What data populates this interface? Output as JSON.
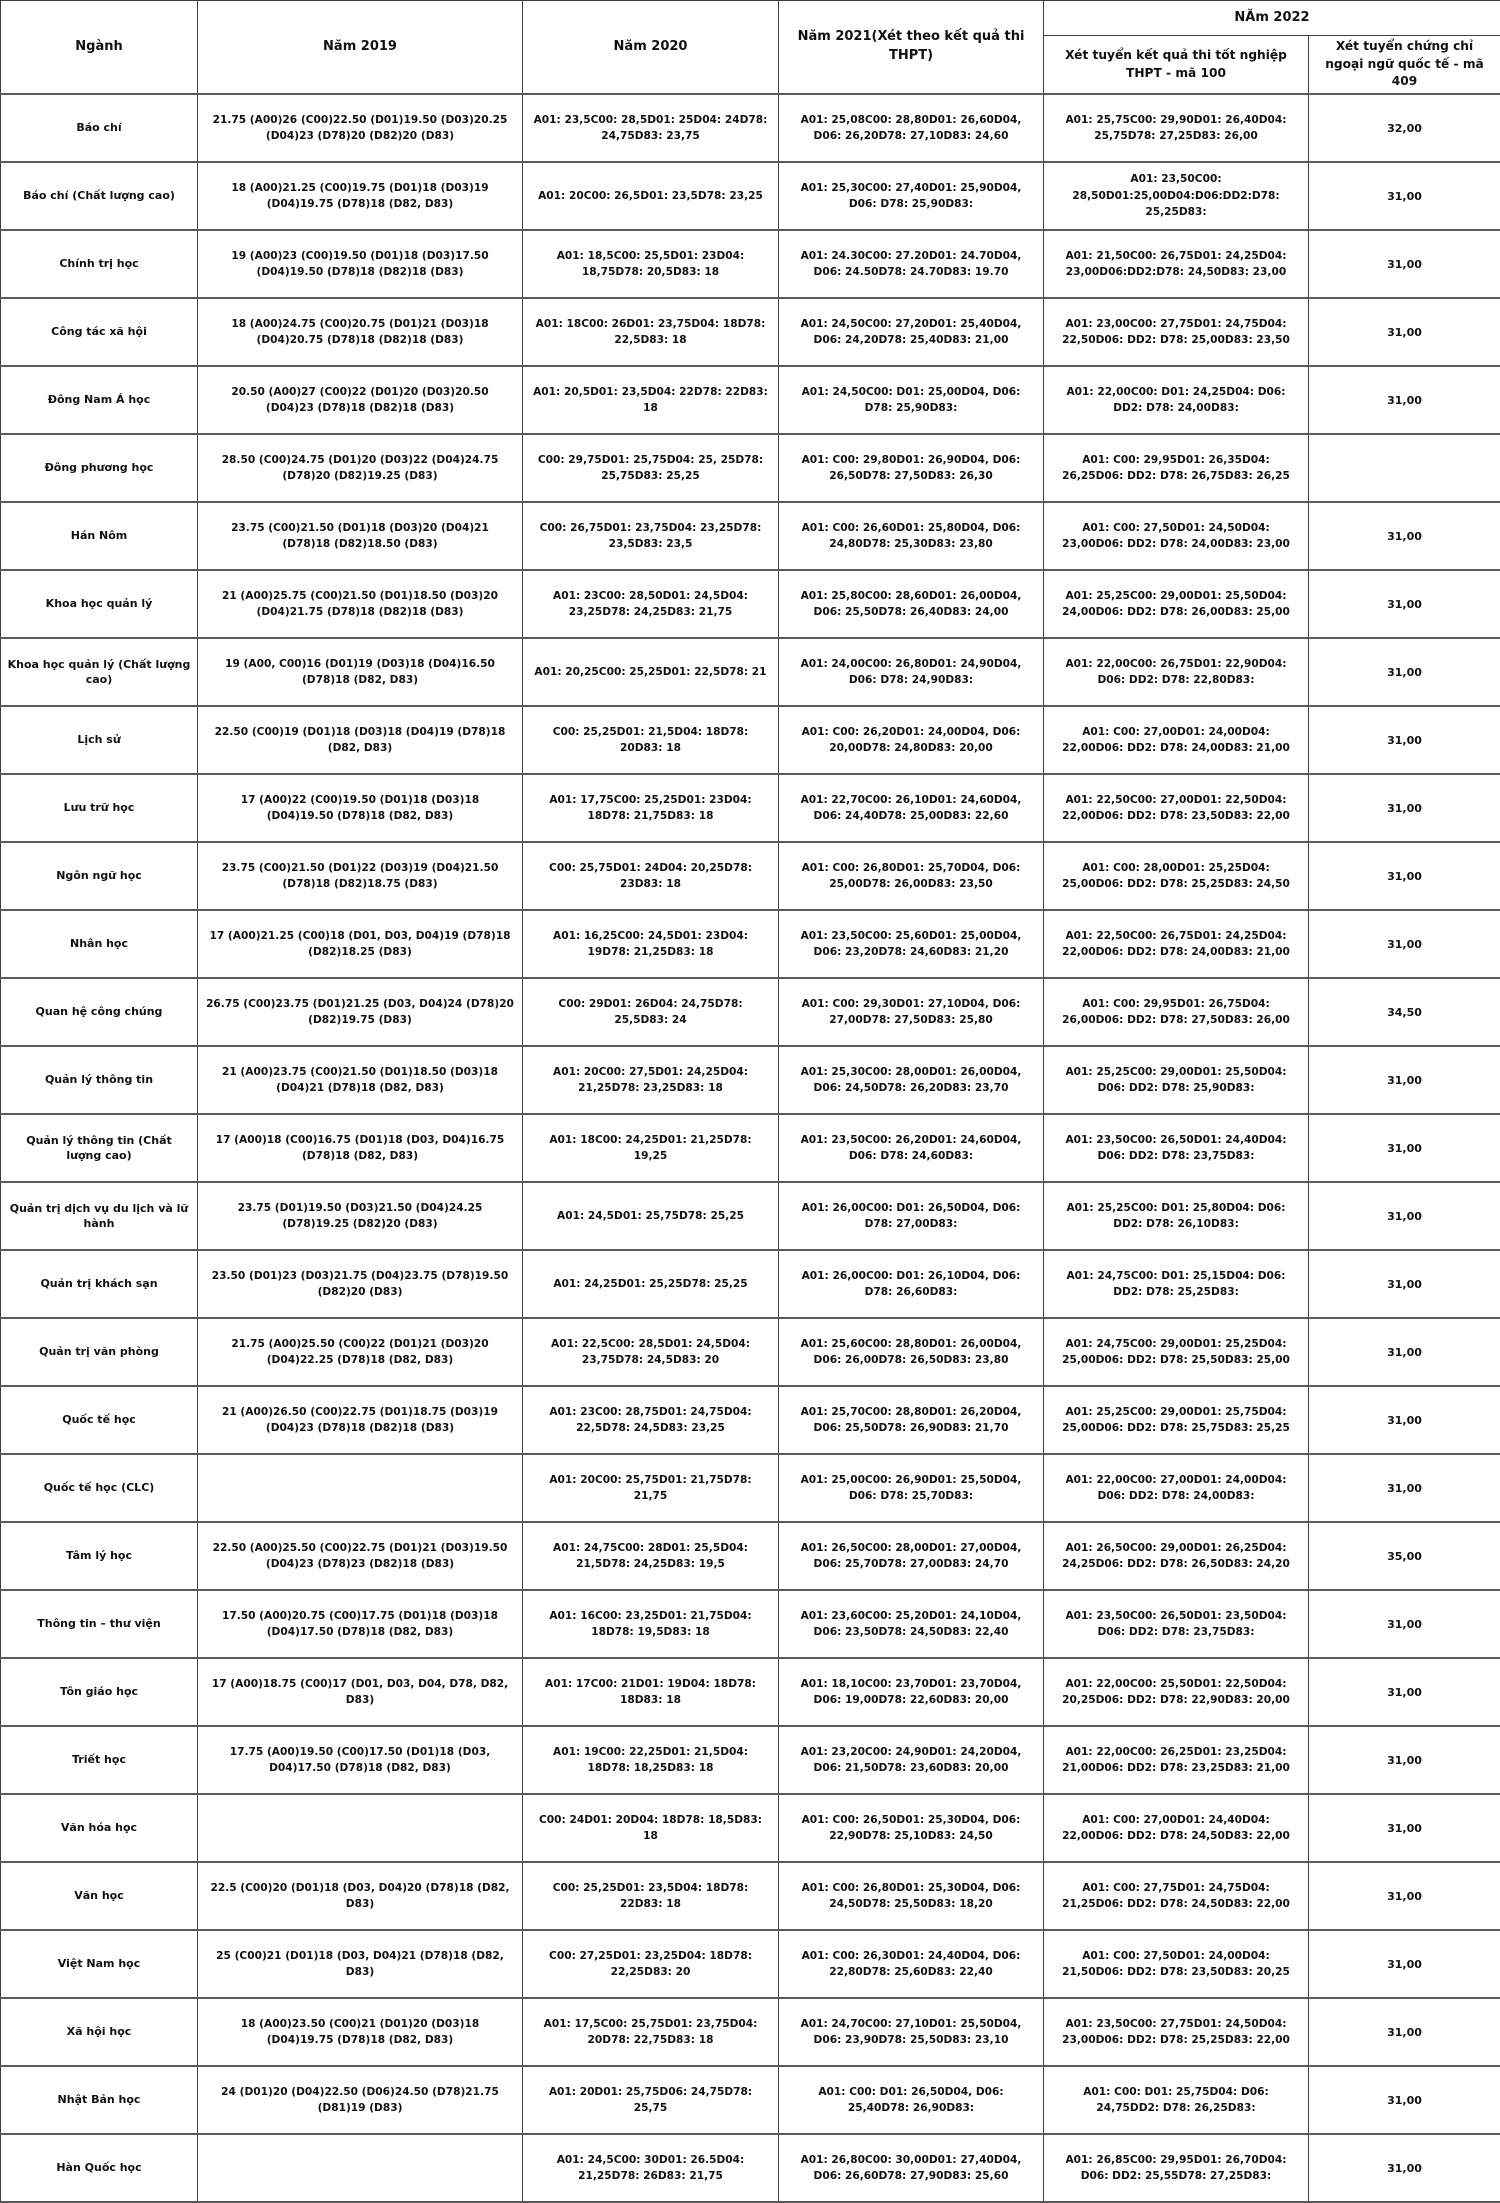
{
  "table": {
    "headers": {
      "nganh": "Ngành",
      "y2019": "Năm 2019",
      "y2020": "Năm 2020",
      "y2021": "Năm 2021(Xét theo kết quả thi THPT)",
      "y2022_group": "NĂm 2022",
      "y2022_100": "Xét tuyển kết quả thi tốt nghiệp THPT - mã 100",
      "y2022_409": "Xét tuyển chứng chỉ ngoại ngữ quốc tế - mã 409"
    },
    "rows": [
      {
        "nganh": "Báo chí",
        "y2019": "21.75 (A00)26 (C00)22.50 (D01)19.50 (D03)20.25 (D04)23 (D78)20 (D82)20 (D83)",
        "y2020": "A01: 23,5C00: 28,5D01: 25D04: 24D78: 24,75D83: 23,75",
        "y2021": "A01: 25,08C00: 28,80D01: 26,60D04, D06: 26,20D78: 27,10D83: 24,60",
        "y2022_100": "A01: 25,75C00: 29,90D01: 26,40D04: 25,75D78: 27,25D83: 26,00",
        "y2022_409": "32,00"
      },
      {
        "nganh": "Báo chí (Chất lượng cao)",
        "y2019": "18 (A00)21.25 (C00)19.75 (D01)18 (D03)19 (D04)19.75 (D78)18 (D82, D83)",
        "y2020": "A01: 20C00: 26,5D01: 23,5D78: 23,25",
        "y2021": "A01: 25,30C00: 27,40D01: 25,90D04, D06: D78: 25,90D83:",
        "y2022_100": "A01: 23,50C00: 28,50D01:25,00D04:D06:DD2:D78: 25,25D83:",
        "y2022_409": "31,00"
      },
      {
        "nganh": "Chính trị học",
        "y2019": "19 (A00)23 (C00)19.50 (D01)18 (D03)17.50 (D04)19.50 (D78)18 (D82)18 (D83)",
        "y2020": "A01: 18,5C00: 25,5D01: 23D04: 18,75D78: 20,5D83: 18",
        "y2021": "A01: 24.30C00: 27.20D01: 24.70D04, D06: 24.50D78: 24.70D83: 19.70",
        "y2022_100": "A01: 21,50C00: 26,75D01: 24,25D04: 23,00D06:DD2:D78: 24,50D83: 23,00",
        "y2022_409": "31,00"
      },
      {
        "nganh": "Công tác xã hội",
        "y2019": "18 (A00)24.75 (C00)20.75 (D01)21 (D03)18 (D04)20.75 (D78)18 (D82)18 (D83)",
        "y2020": "A01: 18C00: 26D01: 23,75D04: 18D78: 22,5D83: 18",
        "y2021": "A01: 24,50C00: 27,20D01: 25,40D04, D06: 24,20D78: 25,40D83: 21,00",
        "y2022_100": "A01: 23,00C00: 27,75D01: 24,75D04: 22,50D06: DD2: D78: 25,00D83: 23,50",
        "y2022_409": "31,00"
      },
      {
        "nganh": "Đông Nam Á học",
        "y2019": "20.50 (A00)27 (C00)22 (D01)20 (D03)20.50 (D04)23 (D78)18 (D82)18 (D83)",
        "y2020": "A01: 20,5D01: 23,5D04: 22D78: 22D83: 18",
        "y2021": "A01: 24,50C00: D01: 25,00D04, D06: D78: 25,90D83:",
        "y2022_100": "A01: 22,00C00: D01: 24,25D04: D06: DD2: D78: 24,00D83:",
        "y2022_409": "31,00"
      },
      {
        "nganh": "Đông phương học",
        "y2019": "28.50 (C00)24.75 (D01)20 (D03)22 (D04)24.75 (D78)20 (D82)19.25 (D83)",
        "y2020": "C00: 29,75D01: 25,75D04: 25, 25D78: 25,75D83: 25,25",
        "y2021": "A01: C00: 29,80D01: 26,90D04, D06: 26,50D78: 27,50D83: 26,30",
        "y2022_100": "A01: C00: 29,95D01: 26,35D04: 26,25D06: DD2: D78: 26,75D83: 26,25",
        "y2022_409": ""
      },
      {
        "nganh": "Hán Nôm",
        "y2019": "23.75 (C00)21.50 (D01)18 (D03)20 (D04)21 (D78)18 (D82)18.50 (D83)",
        "y2020": "C00: 26,75D01: 23,75D04: 23,25D78: 23,5D83: 23,5",
        "y2021": "A01: C00: 26,60D01: 25,80D04, D06: 24,80D78: 25,30D83: 23,80",
        "y2022_100": "A01: C00: 27,50D01: 24,50D04: 23,00D06: DD2: D78: 24,00D83: 23,00",
        "y2022_409": "31,00"
      },
      {
        "nganh": "Khoa học quản lý",
        "y2019": "21 (A00)25.75 (C00)21.50 (D01)18.50 (D03)20 (D04)21.75 (D78)18 (D82)18 (D83)",
        "y2020": "A01: 23C00: 28,50D01: 24,5D04: 23,25D78: 24,25D83: 21,75",
        "y2021": "A01: 25,80C00: 28,60D01: 26,00D04, D06: 25,50D78: 26,40D83: 24,00",
        "y2022_100": "A01: 25,25C00: 29,00D01: 25,50D04: 24,00D06: DD2: D78: 26,00D83: 25,00",
        "y2022_409": "31,00"
      },
      {
        "nganh": "Khoa học quản lý (Chất lượng cao)",
        "y2019": "19 (A00, C00)16 (D01)19 (D03)18 (D04)16.50 (D78)18 (D82, D83)",
        "y2020": "A01: 20,25C00: 25,25D01: 22,5D78: 21",
        "y2021": "A01: 24,00C00: 26,80D01: 24,90D04, D06: D78: 24,90D83:",
        "y2022_100": "A01: 22,00C00: 26,75D01: 22,90D04: D06: DD2: D78: 22,80D83:",
        "y2022_409": "31,00"
      },
      {
        "nganh": "Lịch sử",
        "y2019": "22.50 (C00)19 (D01)18 (D03)18 (D04)19 (D78)18 (D82, D83)",
        "y2020": "C00: 25,25D01: 21,5D04: 18D78: 20D83: 18",
        "y2021": "A01: C00: 26,20D01: 24,00D04, D06: 20,00D78: 24,80D83: 20,00",
        "y2022_100": "A01: C00: 27,00D01: 24,00D04: 22,00D06: DD2: D78: 24,00D83: 21,00",
        "y2022_409": "31,00"
      },
      {
        "nganh": "Lưu trữ học",
        "y2019": "17 (A00)22 (C00)19.50 (D01)18 (D03)18 (D04)19.50 (D78)18 (D82, D83)",
        "y2020": "A01: 17,75C00: 25,25D01: 23D04: 18D78: 21,75D83: 18",
        "y2021": "A01: 22,70C00: 26,10D01: 24,60D04, D06: 24,40D78: 25,00D83: 22,60",
        "y2022_100": "A01: 22,50C00: 27,00D01: 22,50D04: 22,00D06: DD2: D78: 23,50D83: 22,00",
        "y2022_409": "31,00"
      },
      {
        "nganh": "Ngôn ngữ học",
        "y2019": "23.75 (C00)21.50 (D01)22 (D03)19 (D04)21.50 (D78)18 (D82)18.75 (D83)",
        "y2020": "C00: 25,75D01: 24D04: 20,25D78: 23D83: 18",
        "y2021": "A01: C00: 26,80D01: 25,70D04, D06: 25,00D78: 26,00D83: 23,50",
        "y2022_100": "A01: C00: 28,00D01: 25,25D04: 25,00D06: DD2: D78: 25,25D83: 24,50",
        "y2022_409": "31,00"
      },
      {
        "nganh": "Nhân học",
        "y2019": "17 (A00)21.25 (C00)18 (D01, D03, D04)19 (D78)18 (D82)18.25 (D83)",
        "y2020": "A01: 16,25C00: 24,5D01: 23D04: 19D78: 21,25D83: 18",
        "y2021": "A01: 23,50C00: 25,60D01: 25,00D04, D06: 23,20D78: 24,60D83: 21,20",
        "y2022_100": "A01: 22,50C00: 26,75D01: 24,25D04: 22,00D06: DD2: D78: 24,00D83: 21,00",
        "y2022_409": "31,00"
      },
      {
        "nganh": "Quan hệ công chúng",
        "y2019": "26.75 (C00)23.75 (D01)21.25 (D03, D04)24 (D78)20 (D82)19.75 (D83)",
        "y2020": "C00: 29D01: 26D04: 24,75D78: 25,5D83: 24",
        "y2021": "A01: C00: 29,30D01: 27,10D04, D06: 27,00D78: 27,50D83: 25,80",
        "y2022_100": "A01: C00: 29,95D01: 26,75D04: 26,00D06: DD2: D78: 27,50D83: 26,00",
        "y2022_409": "34,50"
      },
      {
        "nganh": "Quản lý thông tin",
        "y2019": "21 (A00)23.75 (C00)21.50 (D01)18.50 (D03)18 (D04)21 (D78)18 (D82, D83)",
        "y2020": "A01: 20C00: 27,5D01: 24,25D04: 21,25D78: 23,25D83: 18",
        "y2021": "A01: 25,30C00: 28,00D01: 26,00D04, D06: 24,50D78: 26,20D83: 23,70",
        "y2022_100": "A01: 25,25C00: 29,00D01: 25,50D04: D06: DD2: D78: 25,90D83:",
        "y2022_409": "31,00"
      },
      {
        "nganh": "Quản lý thông tin (Chất lượng cao)",
        "y2019": "17 (A00)18 (C00)16.75 (D01)18 (D03, D04)16.75 (D78)18 (D82, D83)",
        "y2020": "A01: 18C00: 24,25D01: 21,25D78: 19,25",
        "y2021": "A01: 23,50C00: 26,20D01: 24,60D04, D06: D78: 24,60D83:",
        "y2022_100": "A01: 23,50C00: 26,50D01: 24,40D04: D06: DD2: D78: 23,75D83:",
        "y2022_409": "31,00"
      },
      {
        "nganh": "Quản trị dịch vụ du lịch và lữ hành",
        "y2019": "23.75 (D01)19.50 (D03)21.50 (D04)24.25 (D78)19.25 (D82)20 (D83)",
        "y2020": "A01: 24,5D01: 25,75D78: 25,25",
        "y2021": "A01: 26,00C00: D01: 26,50D04, D06: D78: 27,00D83:",
        "y2022_100": "A01: 25,25C00: D01: 25,80D04: D06: DD2: D78: 26,10D83:",
        "y2022_409": "31,00"
      },
      {
        "nganh": "Quản trị khách sạn",
        "y2019": "23.50 (D01)23 (D03)21.75 (D04)23.75 (D78)19.50 (D82)20 (D83)",
        "y2020": "A01: 24,25D01: 25,25D78: 25,25",
        "y2021": "A01: 26,00C00: D01: 26,10D04, D06: D78: 26,60D83:",
        "y2022_100": "A01: 24,75C00: D01: 25,15D04: D06: DD2: D78: 25,25D83:",
        "y2022_409": "31,00"
      },
      {
        "nganh": "Quản trị văn phòng",
        "y2019": "21.75 (A00)25.50 (C00)22 (D01)21 (D03)20 (D04)22.25 (D78)18 (D82, D83)",
        "y2020": "A01: 22,5C00: 28,5D01: 24,5D04: 23,75D78: 24,5D83: 20",
        "y2021": "A01: 25,60C00: 28,80D01: 26,00D04, D06: 26,00D78: 26,50D83: 23,80",
        "y2022_100": "A01: 24,75C00: 29,00D01: 25,25D04: 25,00D06: DD2: D78: 25,50D83: 25,00",
        "y2022_409": "31,00"
      },
      {
        "nganh": "Quốc tế học",
        "y2019": "21 (A00)26.50 (C00)22.75 (D01)18.75 (D03)19 (D04)23 (D78)18 (D82)18 (D83)",
        "y2020": "A01: 23C00: 28,75D01: 24,75D04: 22,5D78: 24,5D83: 23,25",
        "y2021": "A01: 25,70C00: 28,80D01: 26,20D04, D06: 25,50D78: 26,90D83: 21,70",
        "y2022_100": "A01: 25,25C00: 29,00D01: 25,75D04: 25,00D06: DD2: D78: 25,75D83: 25,25",
        "y2022_409": "31,00"
      },
      {
        "nganh": "Quốc tế học (CLC)",
        "y2019": "",
        "y2020": "A01: 20C00: 25,75D01: 21,75D78: 21,75",
        "y2021": "A01: 25,00C00: 26,90D01: 25,50D04, D06: D78: 25,70D83:",
        "y2022_100": "A01: 22,00C00: 27,00D01: 24,00D04: D06: DD2: D78: 24,00D83:",
        "y2022_409": "31,00"
      },
      {
        "nganh": "Tâm lý học",
        "y2019": "22.50 (A00)25.50 (C00)22.75 (D01)21 (D03)19.50 (D04)23 (D78)23 (D82)18 (D83)",
        "y2020": "A01: 24,75C00: 28D01: 25,5D04: 21,5D78: 24,25D83: 19,5",
        "y2021": "A01: 26,50C00: 28,00D01: 27,00D04, D06: 25,70D78: 27,00D83: 24,70",
        "y2022_100": "A01: 26,50C00: 29,00D01: 26,25D04: 24,25D06: DD2: D78: 26,50D83: 24,20",
        "y2022_409": "35,00"
      },
      {
        "nganh": "Thông tin – thư viện",
        "y2019": "17.50 (A00)20.75 (C00)17.75 (D01)18 (D03)18 (D04)17.50 (D78)18 (D82, D83)",
        "y2020": "A01: 16C00: 23,25D01: 21,75D04: 18D78: 19,5D83: 18",
        "y2021": "A01: 23,60C00: 25,20D01: 24,10D04, D06: 23,50D78: 24,50D83: 22,40",
        "y2022_100": "A01: 23,50C00: 26,50D01: 23,50D04: D06: DD2: D78: 23,75D83:",
        "y2022_409": "31,00"
      },
      {
        "nganh": "Tôn giáo học",
        "y2019": "17 (A00)18.75 (C00)17 (D01, D03, D04, D78, D82, D83)",
        "y2020": "A01: 17C00: 21D01: 19D04: 18D78: 18D83: 18",
        "y2021": "A01: 18,10C00: 23,70D01: 23,70D04, D06: 19,00D78: 22,60D83: 20,00",
        "y2022_100": "A01: 22,00C00: 25,50D01: 22,50D04: 20,25D06: DD2: D78: 22,90D83: 20,00",
        "y2022_409": "31,00"
      },
      {
        "nganh": "Triết học",
        "y2019": "17.75 (A00)19.50 (C00)17.50 (D01)18 (D03, D04)17.50 (D78)18 (D82, D83)",
        "y2020": "A01: 19C00: 22,25D01: 21,5D04: 18D78: 18,25D83: 18",
        "y2021": "A01: 23,20C00: 24,90D01: 24,20D04, D06: 21,50D78: 23,60D83: 20,00",
        "y2022_100": "A01: 22,00C00: 26,25D01: 23,25D04: 21,00D06: DD2: D78: 23,25D83: 21,00",
        "y2022_409": "31,00"
      },
      {
        "nganh": "Văn hóa học",
        "y2019": "",
        "y2020": "C00: 24D01: 20D04: 18D78: 18,5D83: 18",
        "y2021": "A01: C00: 26,50D01: 25,30D04, D06: 22,90D78: 25,10D83: 24,50",
        "y2022_100": "A01: C00: 27,00D01: 24,40D04: 22,00D06: DD2: D78: 24,50D83: 22,00",
        "y2022_409": "31,00"
      },
      {
        "nganh": "Văn học",
        "y2019": "22.5 (C00)20 (D01)18 (D03, D04)20 (D78)18 (D82, D83)",
        "y2020": "C00: 25,25D01: 23,5D04: 18D78: 22D83: 18",
        "y2021": "A01: C00: 26,80D01: 25,30D04, D06: 24,50D78: 25,50D83: 18,20",
        "y2022_100": "A01: C00: 27,75D01: 24,75D04: 21,25D06: DD2: D78: 24,50D83: 22,00",
        "y2022_409": "31,00"
      },
      {
        "nganh": "Việt Nam học",
        "y2019": "25 (C00)21 (D01)18 (D03, D04)21 (D78)18 (D82, D83)",
        "y2020": "C00: 27,25D01: 23,25D04: 18D78: 22,25D83: 20",
        "y2021": "A01: C00: 26,30D01: 24,40D04, D06: 22,80D78: 25,60D83: 22,40",
        "y2022_100": "A01: C00: 27,50D01: 24,00D04: 21,50D06: DD2: D78: 23,50D83: 20,25",
        "y2022_409": "31,00"
      },
      {
        "nganh": "Xã hội học",
        "y2019": "18 (A00)23.50 (C00)21 (D01)20 (D03)18 (D04)19.75 (D78)18 (D82, D83)",
        "y2020": "A01: 17,5C00: 25,75D01: 23,75D04: 20D78: 22,75D83: 18",
        "y2021": "A01: 24,70C00: 27,10D01: 25,50D04, D06: 23,90D78: 25,50D83: 23,10",
        "y2022_100": "A01: 23,50C00: 27,75D01: 24,50D04: 23,00D06: DD2: D78: 25,25D83: 22,00",
        "y2022_409": "31,00"
      },
      {
        "nganh": "Nhật Bản học",
        "y2019": "24 (D01)20 (D04)22.50 (D06)24.50 (D78)21.75 (D81)19 (D83)",
        "y2020": "A01: 20D01: 25,75D06: 24,75D78: 25,75",
        "y2021": "A01: C00: D01: 26,50D04, D06: 25,40D78: 26,90D83:",
        "y2022_100": "A01: C00: D01: 25,75D04: D06: 24,75DD2: D78: 26,25D83:",
        "y2022_409": "31,00"
      },
      {
        "nganh": "Hàn Quốc học",
        "y2019": "",
        "y2020": "A01: 24,5C00: 30D01: 26.5D04: 21,25D78: 26D83: 21,75",
        "y2021": "A01: 26,80C00: 30,00D01: 27,40D04, D06: 26,60D78: 27,90D83: 25,60",
        "y2022_100": "A01: 26,85C00: 29,95D01: 26,70D04: D06: DD2: 25,55D78: 27,25D83:",
        "y2022_409": "31,00"
      }
    ]
  }
}
